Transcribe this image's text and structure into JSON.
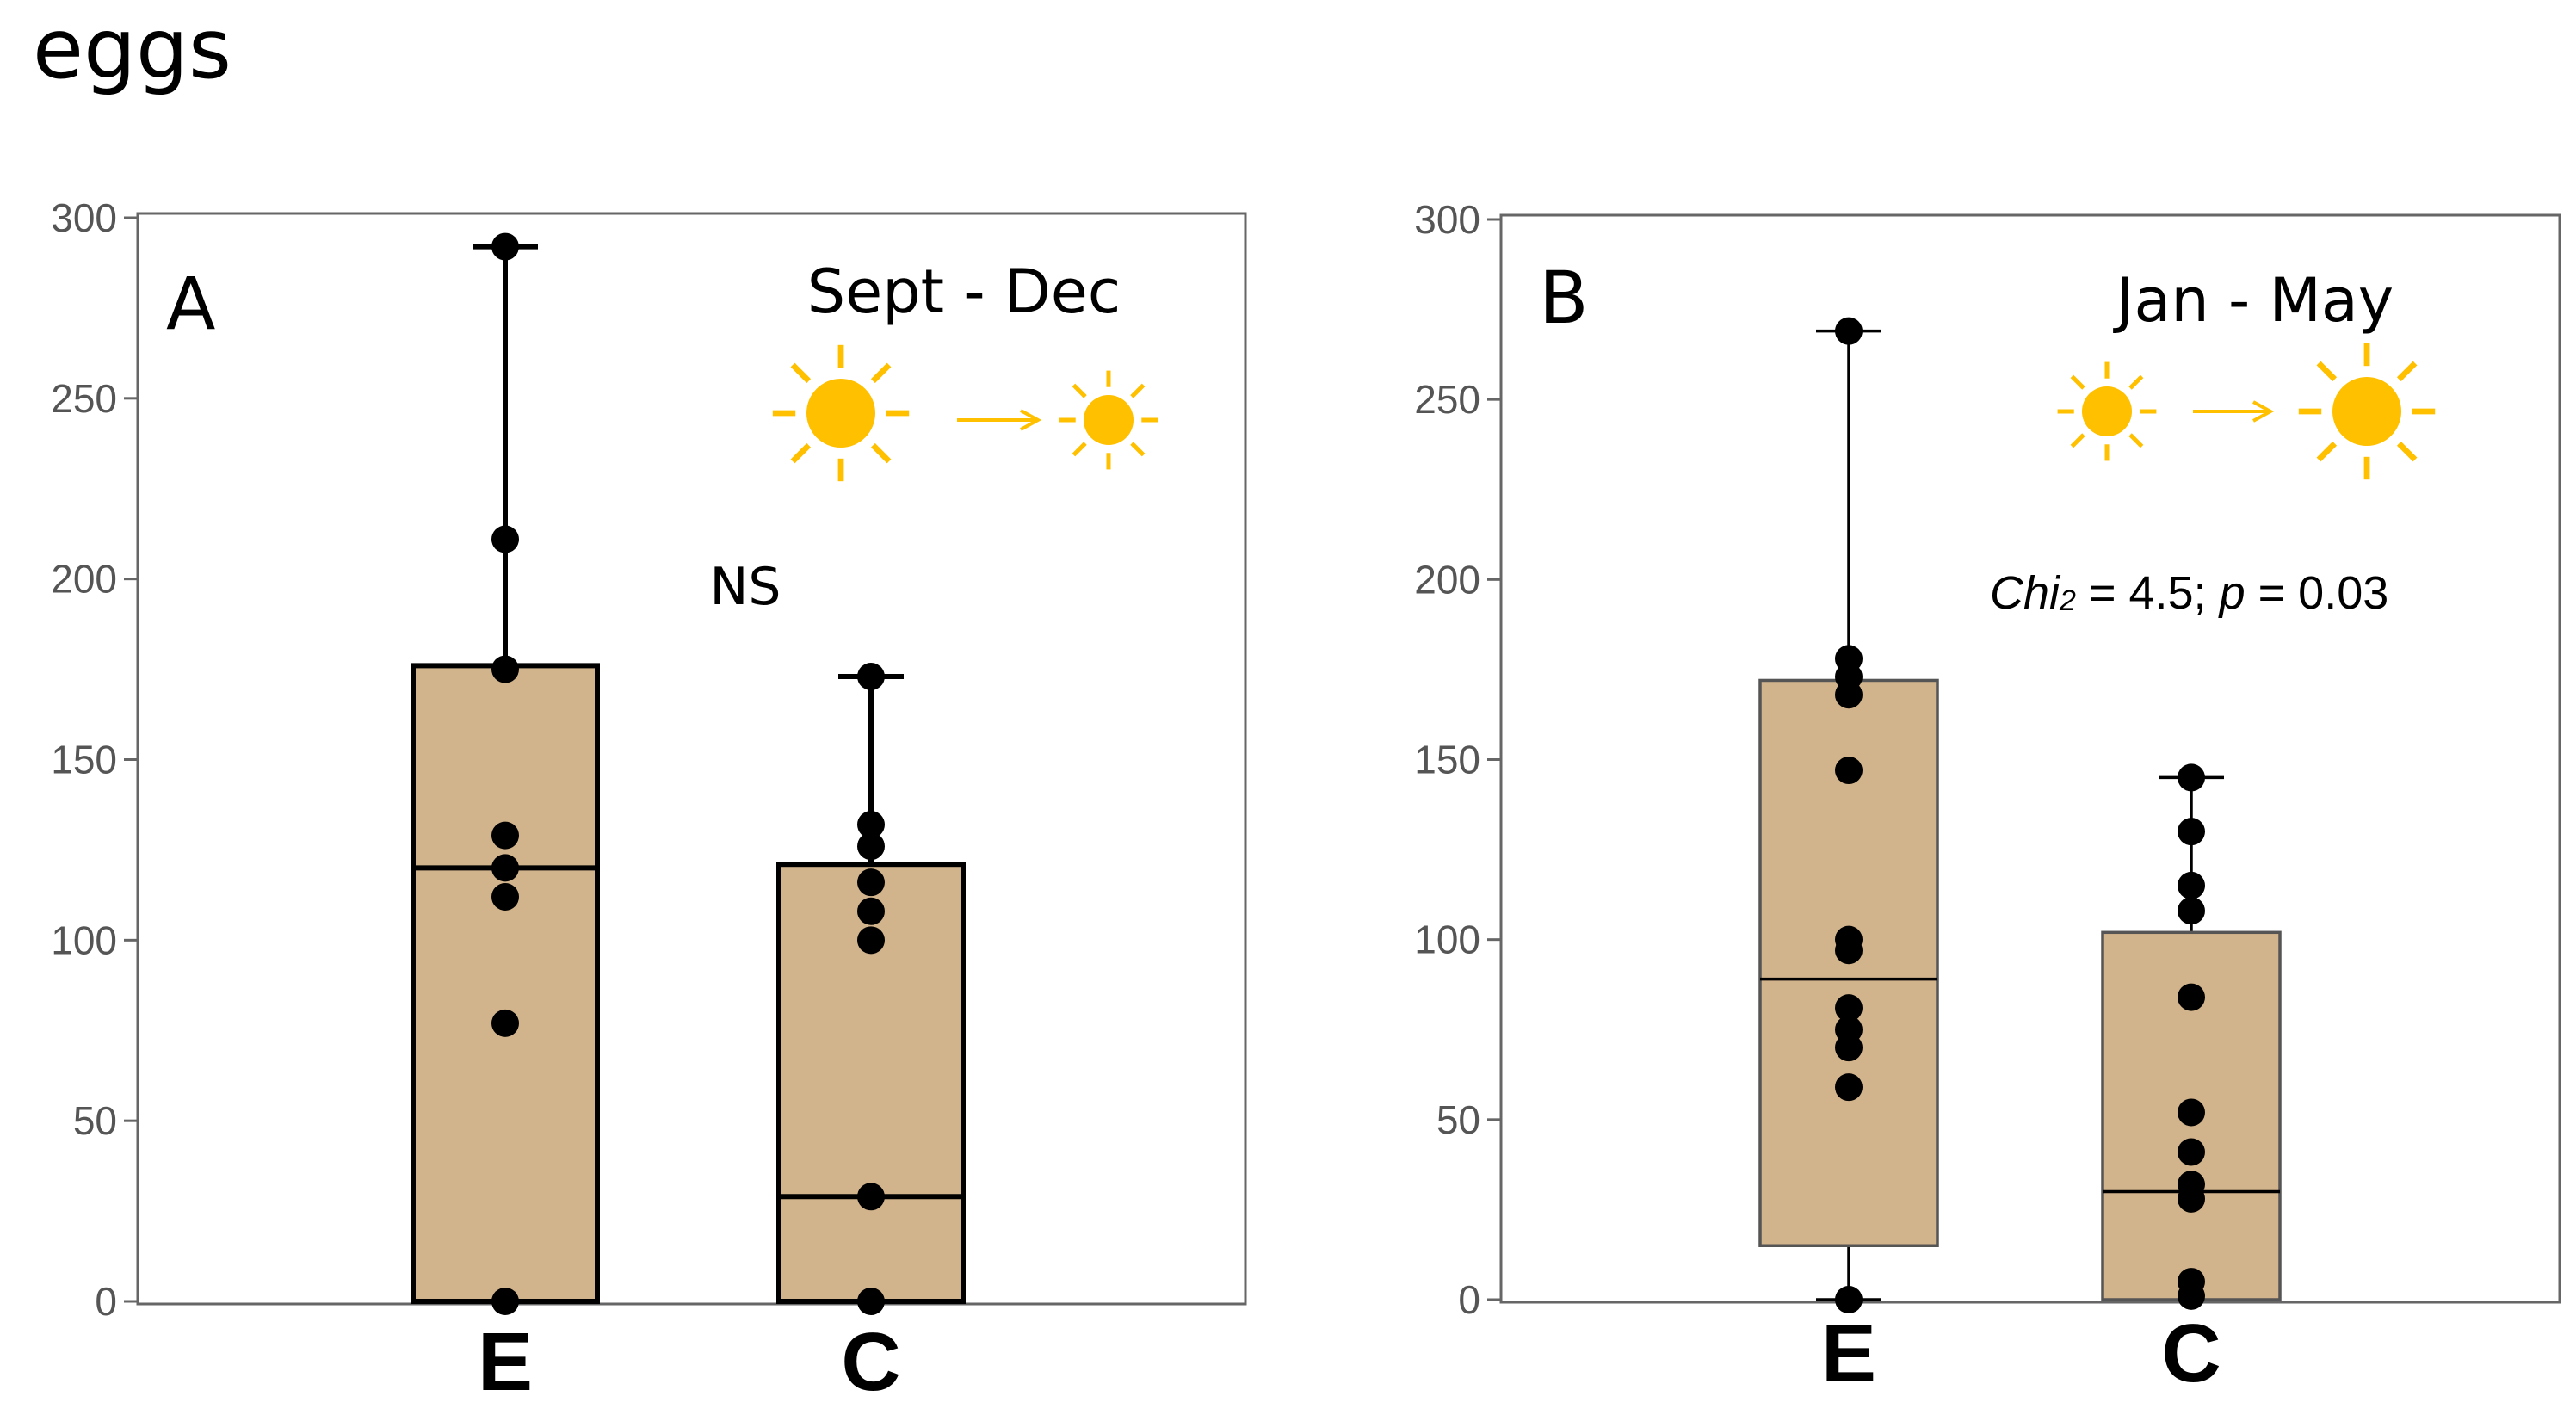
{
  "figure_title": "eggs",
  "colors": {
    "box_fill": "#D2B48C",
    "sun": "#FFC000",
    "frame": "#666666",
    "points": "#000000"
  },
  "chart_data": [
    {
      "type": "box",
      "panel_label": "A",
      "period": "Sept - Dec",
      "light_trend": "decreasing",
      "annotation": "NS",
      "ylim": [
        0,
        300
      ],
      "yticks": [
        "0",
        "50",
        "100",
        "150",
        "200",
        "250",
        "300"
      ],
      "categories": [
        "E",
        "C"
      ],
      "boxes": [
        {
          "name": "E",
          "min": 0,
          "q1": 0,
          "median": 120,
          "q3": 176,
          "max": 292,
          "points": [
            292,
            211,
            175,
            129,
            120,
            112,
            77,
            0
          ]
        },
        {
          "name": "C",
          "min": 0,
          "q1": 0,
          "median": 29,
          "q3": 121,
          "max": 173,
          "points": [
            173,
            132,
            126,
            116,
            108,
            100,
            29,
            0
          ]
        }
      ]
    },
    {
      "type": "box",
      "panel_label": "B",
      "period": "Jan - May",
      "light_trend": "increasing",
      "annotation": {
        "stat": "Chi",
        "sub": "2",
        "rest": " = 4.5; ",
        "p": "p",
        "p_value": " = 0.03"
      },
      "ylim": [
        0,
        300
      ],
      "yticks": [
        "0",
        "50",
        "100",
        "150",
        "200",
        "250",
        "300"
      ],
      "categories": [
        "E",
        "C"
      ],
      "boxes": [
        {
          "name": "E",
          "min": 0,
          "q1": 15,
          "median": 89,
          "q3": 172,
          "max": 269,
          "points": [
            269,
            178,
            173,
            168,
            147,
            100,
            97,
            81,
            75,
            70,
            59,
            0
          ]
        },
        {
          "name": "C",
          "min": 0,
          "q1": 0,
          "median": 30,
          "q3": 102,
          "max": 145,
          "points": [
            145,
            130,
            115,
            108,
            84,
            52,
            41,
            32,
            28,
            5,
            1
          ]
        }
      ]
    }
  ]
}
